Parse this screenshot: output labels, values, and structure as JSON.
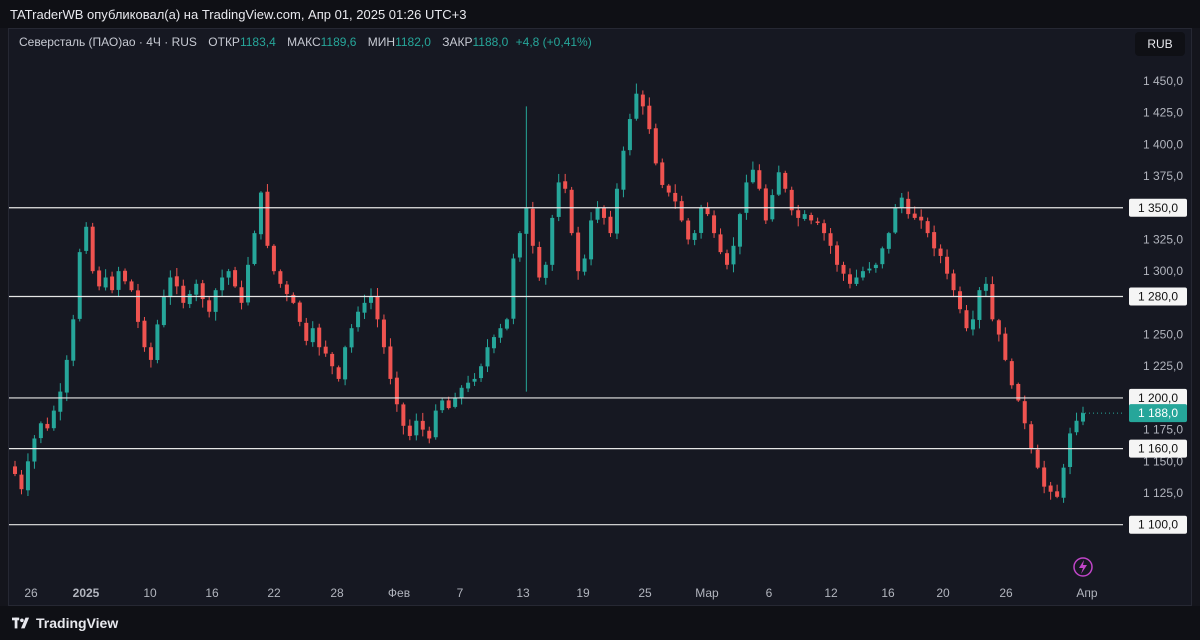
{
  "header": {
    "text": "TATraderWB опубликовал(а) на TradingView.com, Апр 01, 2025 01:26 UTC+3"
  },
  "legend": {
    "symbol": "Северсталь (ПАО)ао · 4Ч · RUS",
    "open_label": "ОТКР",
    "open": "1183,4",
    "high_label": "МАКС",
    "high": "1189,6",
    "low_label": "МИН",
    "low": "1182,0",
    "close_label": "ЗАКР",
    "close": "1188,0",
    "change": "+4,8 (+0,41%)"
  },
  "currency_button": "RUB",
  "footer": {
    "brand": "TradingView"
  },
  "colors": {
    "up": "#26a69a",
    "down": "#ef5350",
    "level_line": "#e6e6e6",
    "current_price_bg": "#26a69a"
  },
  "chart_data": {
    "type": "candlestick",
    "timeframe": "4Ч",
    "ylim": [
      1085,
      1460
    ],
    "y_ticks": [
      "1 450,0",
      "1 425,0",
      "1 400,0",
      "1 375,0",
      "1 325,0",
      "1 300,0",
      "1 250,0",
      "1 225,0",
      "1 175,0",
      "1 150,0",
      "1 125,0"
    ],
    "y_tick_values": [
      1450,
      1425,
      1400,
      1375,
      1325,
      1300,
      1250,
      1225,
      1175,
      1150,
      1125
    ],
    "x_tick_labels": [
      "26",
      "2025",
      "10",
      "16",
      "22",
      "28",
      "Фев",
      "7",
      "13",
      "19",
      "25",
      "Мар",
      "6",
      "12",
      "16",
      "20",
      "26",
      "Апр"
    ],
    "x_tick_bold": [
      "2025"
    ],
    "horizontal_levels": [
      {
        "value": 1350,
        "label": "1 350,0"
      },
      {
        "value": 1280,
        "label": "1 280,0"
      },
      {
        "value": 1200,
        "label": "1 200,0"
      },
      {
        "value": 1160,
        "label": "1 160,0"
      },
      {
        "value": 1100,
        "label": "1 100,0"
      }
    ],
    "current_price": {
      "value": 1188,
      "label": "1 188,0"
    },
    "close_path": [
      1140,
      1128,
      1150,
      1168,
      1180,
      1176,
      1190,
      1205,
      1230,
      1262,
      1315,
      1335,
      1300,
      1288,
      1295,
      1285,
      1300,
      1292,
      1285,
      1260,
      1240,
      1230,
      1258,
      1280,
      1295,
      1288,
      1275,
      1282,
      1290,
      1278,
      1268,
      1285,
      1295,
      1300,
      1288,
      1275,
      1305,
      1330,
      1362,
      1320,
      1300,
      1290,
      1282,
      1275,
      1260,
      1245,
      1255,
      1240,
      1235,
      1225,
      1215,
      1240,
      1255,
      1268,
      1275,
      1280,
      1262,
      1240,
      1215,
      1195,
      1178,
      1170,
      1182,
      1175,
      1168,
      1190,
      1198,
      1192,
      1200,
      1208,
      1212,
      1215,
      1225,
      1240,
      1248,
      1255,
      1262,
      1310,
      1330,
      1350,
      1320,
      1295,
      1305,
      1342,
      1370,
      1365,
      1330,
      1300,
      1310,
      1340,
      1350,
      1342,
      1330,
      1365,
      1395,
      1420,
      1440,
      1430,
      1412,
      1385,
      1368,
      1362,
      1355,
      1340,
      1325,
      1330,
      1350,
      1345,
      1330,
      1315,
      1305,
      1320,
      1345,
      1370,
      1380,
      1365,
      1340,
      1360,
      1378,
      1365,
      1348,
      1342,
      1345,
      1340,
      1338,
      1330,
      1320,
      1305,
      1298,
      1290,
      1295,
      1300,
      1302,
      1305,
      1318,
      1330,
      1350,
      1358,
      1345,
      1342,
      1340,
      1330,
      1318,
      1312,
      1298,
      1285,
      1270,
      1255,
      1262,
      1285,
      1290,
      1262,
      1250,
      1230,
      1210,
      1198,
      1180,
      1160,
      1145,
      1130,
      1126,
      1122,
      1145,
      1172,
      1182,
      1188
    ]
  }
}
